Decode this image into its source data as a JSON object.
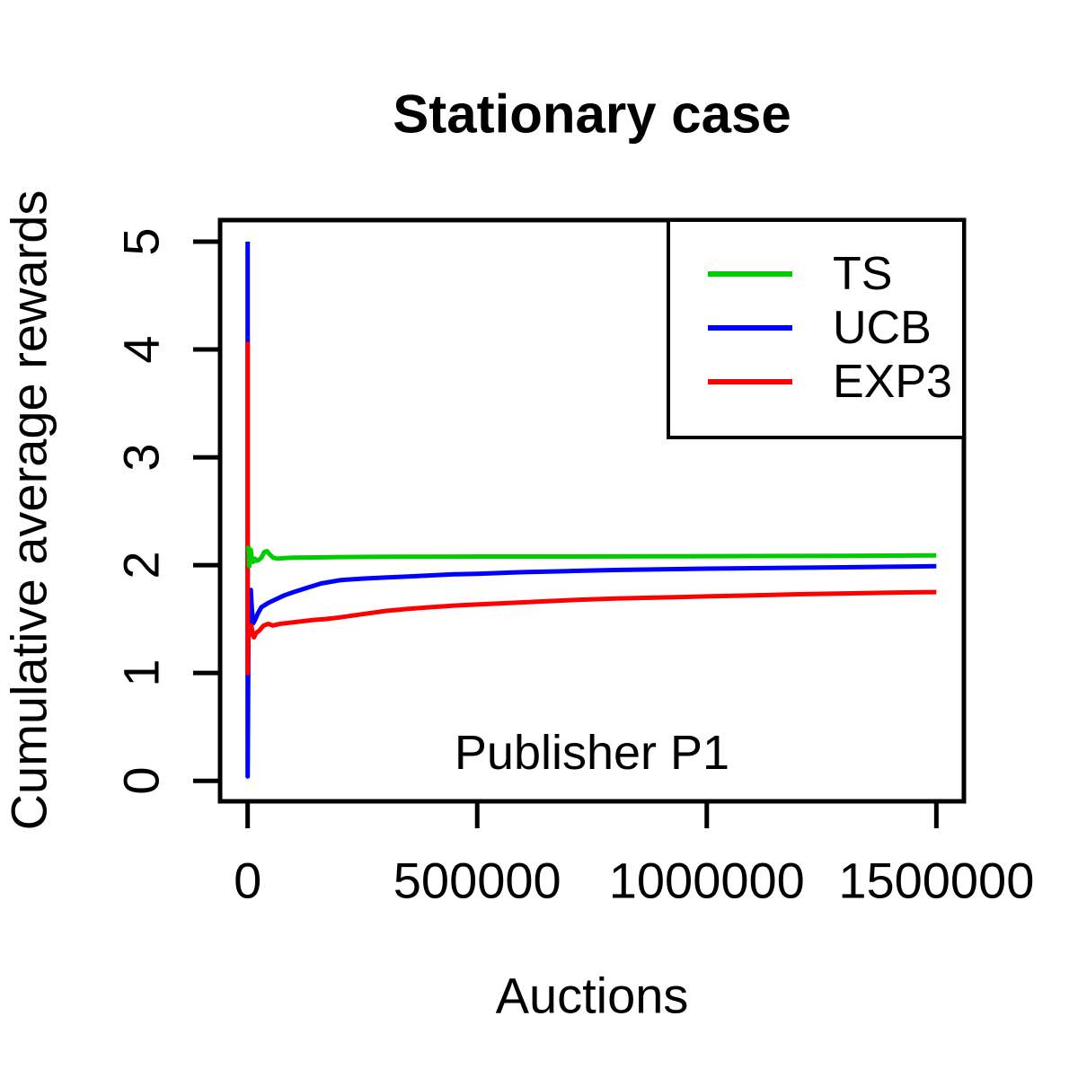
{
  "chart_data": {
    "type": "line",
    "title": "Stationary case",
    "xlabel": "Auctions",
    "ylabel": "Cumulative average rewards",
    "annotation": {
      "label": "Publisher P1",
      "x": 750000,
      "y": 0.26
    },
    "xlim": [
      -60000,
      1560000
    ],
    "ylim": [
      -0.19,
      5.2
    ],
    "grid": false,
    "xticks": {
      "values": [
        0,
        500000,
        1000000,
        1500000
      ],
      "labels": [
        "0",
        "500000",
        "1000000",
        "1500000"
      ]
    },
    "yticks": {
      "values": [
        0,
        1,
        2,
        3,
        4,
        5
      ],
      "labels": [
        "0",
        "1",
        "2",
        "3",
        "4",
        "5"
      ]
    },
    "legend": {
      "position": "topright",
      "entries": [
        {
          "label": "TS",
          "color": "#00CD00"
        },
        {
          "label": "UCB",
          "color": "#0000FF"
        },
        {
          "label": "EXP3",
          "color": "#FF0000"
        }
      ]
    },
    "series": [
      {
        "name": "UCB",
        "color": "#0000FF",
        "points": [
          [
            0,
            5.0
          ],
          [
            0,
            0.04
          ],
          [
            2000,
            1.62
          ],
          [
            5000,
            1.5
          ],
          [
            7000,
            1.77
          ],
          [
            9000,
            1.6
          ],
          [
            12000,
            1.46
          ],
          [
            16000,
            1.49
          ],
          [
            22000,
            1.55
          ],
          [
            30000,
            1.61
          ],
          [
            45000,
            1.65
          ],
          [
            60000,
            1.68
          ],
          [
            80000,
            1.72
          ],
          [
            100000,
            1.75
          ],
          [
            130000,
            1.79
          ],
          [
            160000,
            1.83
          ],
          [
            200000,
            1.86
          ],
          [
            250000,
            1.875
          ],
          [
            300000,
            1.885
          ],
          [
            350000,
            1.895
          ],
          [
            400000,
            1.905
          ],
          [
            450000,
            1.915
          ],
          [
            500000,
            1.92
          ],
          [
            600000,
            1.935
          ],
          [
            700000,
            1.945
          ],
          [
            800000,
            1.955
          ],
          [
            900000,
            1.962
          ],
          [
            1000000,
            1.968
          ],
          [
            1100000,
            1.972
          ],
          [
            1200000,
            1.976
          ],
          [
            1300000,
            1.98
          ],
          [
            1400000,
            1.985
          ],
          [
            1500000,
            1.99
          ]
        ]
      },
      {
        "name": "EXP3",
        "color": "#FF0000",
        "points": [
          [
            0,
            4.07
          ],
          [
            0,
            1.0
          ],
          [
            2000,
            1.43
          ],
          [
            5000,
            1.38
          ],
          [
            8000,
            1.44
          ],
          [
            11000,
            1.35
          ],
          [
            14000,
            1.33
          ],
          [
            18000,
            1.37
          ],
          [
            25000,
            1.39
          ],
          [
            35000,
            1.44
          ],
          [
            45000,
            1.455
          ],
          [
            55000,
            1.44
          ],
          [
            70000,
            1.455
          ],
          [
            90000,
            1.465
          ],
          [
            110000,
            1.475
          ],
          [
            140000,
            1.49
          ],
          [
            170000,
            1.5
          ],
          [
            200000,
            1.515
          ],
          [
            250000,
            1.545
          ],
          [
            300000,
            1.575
          ],
          [
            350000,
            1.595
          ],
          [
            400000,
            1.61
          ],
          [
            450000,
            1.625
          ],
          [
            500000,
            1.635
          ],
          [
            600000,
            1.655
          ],
          [
            700000,
            1.675
          ],
          [
            800000,
            1.69
          ],
          [
            900000,
            1.7
          ],
          [
            1000000,
            1.71
          ],
          [
            1100000,
            1.72
          ],
          [
            1200000,
            1.73
          ],
          [
            1300000,
            1.738
          ],
          [
            1400000,
            1.745
          ],
          [
            1500000,
            1.75
          ]
        ]
      },
      {
        "name": "TS",
        "color": "#00CD00",
        "points": [
          [
            2000,
            2.18
          ],
          [
            3500,
            1.99
          ],
          [
            5000,
            2.1
          ],
          [
            7000,
            2.14
          ],
          [
            9000,
            2.06
          ],
          [
            12000,
            2.03
          ],
          [
            16000,
            2.06
          ],
          [
            20000,
            2.04
          ],
          [
            25000,
            2.05
          ],
          [
            30000,
            2.07
          ],
          [
            36000,
            2.12
          ],
          [
            42000,
            2.13
          ],
          [
            48000,
            2.1
          ],
          [
            55000,
            2.07
          ],
          [
            65000,
            2.06
          ],
          [
            80000,
            2.065
          ],
          [
            100000,
            2.07
          ],
          [
            150000,
            2.072
          ],
          [
            200000,
            2.075
          ],
          [
            300000,
            2.078
          ],
          [
            500000,
            2.08
          ],
          [
            700000,
            2.08
          ],
          [
            900000,
            2.082
          ],
          [
            1100000,
            2.084
          ],
          [
            1300000,
            2.086
          ],
          [
            1500000,
            2.09
          ]
        ]
      }
    ]
  },
  "colors": {
    "axis": "#000000",
    "text": "#000000",
    "background": "#FFFFFF"
  }
}
